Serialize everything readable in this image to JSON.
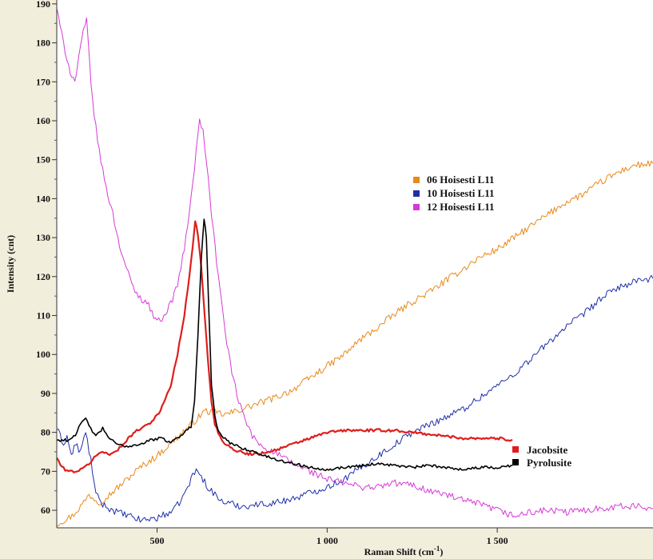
{
  "chart_data": {
    "type": "line",
    "xlabel": "Raman Shift (cm",
    "xlabel_sup": "-1",
    "xlabel_close": ")",
    "ylabel": "Intensity (cnt)",
    "xlim": [
      205,
      1958
    ],
    "ylim": [
      55.5,
      191
    ],
    "x_ticks": [
      {
        "value": 500,
        "label": "500"
      },
      {
        "value": 1000,
        "label": "1 000"
      },
      {
        "value": 1500,
        "label": "1 500"
      }
    ],
    "y_ticks": [
      {
        "value": 60,
        "label": "60"
      },
      {
        "value": 70,
        "label": "70"
      },
      {
        "value": 80,
        "label": "80"
      },
      {
        "value": 90,
        "label": "90"
      },
      {
        "value": 100,
        "label": "100"
      },
      {
        "value": 110,
        "label": "110"
      },
      {
        "value": 120,
        "label": "120"
      },
      {
        "value": 130,
        "label": "130"
      },
      {
        "value": 140,
        "label": "140"
      },
      {
        "value": 150,
        "label": "150"
      },
      {
        "value": 160,
        "label": "160"
      },
      {
        "value": 170,
        "label": "170"
      },
      {
        "value": 180,
        "label": "180"
      },
      {
        "value": 190,
        "label": "190"
      }
    ],
    "grid": false,
    "legend_position": "center-right",
    "legend": [
      {
        "name": "06 Hoisesti L11",
        "color": "#e8891c"
      },
      {
        "name": "10 Hoisesti L11",
        "color": "#1f2fa8"
      },
      {
        "name": "12 Hoisesti L11",
        "color": "#d63ad6"
      }
    ],
    "series": [
      {
        "name": "06 Hoisesti L11",
        "color": "#e8891c",
        "stroke_width": 1,
        "x": [
          205,
          250,
          280,
          300,
          330,
          360,
          400,
          450,
          500,
          550,
          600,
          640,
          680,
          700,
          750,
          800,
          850,
          900,
          950,
          1000,
          1050,
          1100,
          1150,
          1200,
          1250,
          1300,
          1350,
          1400,
          1450,
          1500,
          1550,
          1600,
          1650,
          1700,
          1750,
          1800,
          1850,
          1900,
          1958
        ],
        "y": [
          56.5,
          58.5,
          61.5,
          64,
          62,
          64,
          67,
          71,
          74,
          78,
          82,
          85.5,
          85,
          84.5,
          86,
          87.5,
          89,
          91,
          94,
          97,
          100,
          104,
          107,
          110.5,
          113.5,
          116,
          119,
          122,
          125,
          127,
          130,
          133,
          136,
          139,
          141,
          144,
          146.5,
          148.5,
          149
        ]
      },
      {
        "name": "10 Hoisesti L11",
        "color": "#1f2fa8",
        "stroke_width": 1,
        "x": [
          205,
          215,
          225,
          235,
          248,
          260,
          275,
          290,
          305,
          320,
          340,
          370,
          400,
          450,
          500,
          550,
          580,
          600,
          615,
          630,
          650,
          680,
          700,
          750,
          800,
          850,
          900,
          950,
          1000,
          1050,
          1100,
          1150,
          1200,
          1250,
          1300,
          1350,
          1400,
          1450,
          1500,
          1550,
          1600,
          1650,
          1700,
          1750,
          1800,
          1850,
          1900,
          1958
        ],
        "y": [
          81,
          79,
          77,
          79,
          74,
          77,
          75,
          80,
          73,
          64,
          61.5,
          60,
          59,
          57.5,
          58,
          60,
          64,
          68,
          70.5,
          68.5,
          66,
          63,
          62,
          61,
          61.5,
          62,
          63,
          64.5,
          66,
          68,
          71,
          74,
          77,
          80,
          82,
          84,
          86,
          89,
          92,
          95,
          99,
          103,
          107,
          110,
          114,
          117,
          118.5,
          119.5
        ]
      },
      {
        "name": "12 Hoisesti L11",
        "color": "#d63ad6",
        "stroke_width": 1,
        "x": [
          205,
          215,
          230,
          245,
          258,
          270,
          283,
          293,
          310,
          330,
          350,
          370,
          390,
          410,
          430,
          450,
          470,
          490,
          505,
          520,
          540,
          560,
          580,
          600,
          615,
          625,
          635,
          645,
          660,
          680,
          700,
          720,
          740,
          760,
          780,
          800,
          850,
          900,
          950,
          1000,
          1050,
          1100,
          1150,
          1200,
          1250,
          1300,
          1350,
          1400,
          1450,
          1500,
          1550,
          1600,
          1650,
          1700,
          1750,
          1800,
          1850,
          1900,
          1958
        ],
        "y": [
          189,
          184,
          178,
          172.5,
          170,
          176,
          183,
          185.5,
          165,
          152,
          143,
          136,
          128,
          122,
          117,
          114.5,
          113.5,
          110,
          108.5,
          110,
          113,
          118,
          127,
          140,
          152,
          161,
          157,
          150,
          136,
          120,
          106,
          95,
          88,
          83,
          79,
          77,
          74.5,
          72,
          70,
          68,
          67,
          66,
          66,
          67,
          66.5,
          65,
          64,
          62.5,
          61.5,
          60,
          58.5,
          59.5,
          60,
          59.5,
          60,
          60.5,
          61,
          61,
          60.5
        ]
      },
      {
        "name": "Jacobsite",
        "color": "#e01d1d",
        "stroke_width": 2.2,
        "x": [
          205,
          220,
          240,
          260,
          280,
          300,
          320,
          340,
          360,
          380,
          400,
          420,
          450,
          480,
          510,
          540,
          560,
          580,
          595,
          605,
          612,
          620,
          630,
          640,
          650,
          660,
          670,
          690,
          710,
          730,
          760,
          800,
          850,
          900,
          950,
          1000,
          1050,
          1100,
          1150,
          1200,
          1250,
          1300,
          1350,
          1400,
          1450,
          1500,
          1545
        ],
        "y": [
          73.5,
          71,
          70,
          70,
          70.5,
          72,
          74,
          75,
          74.5,
          75,
          77,
          79,
          81,
          82.5,
          85.5,
          92,
          100,
          110,
          120,
          128,
          134.5,
          131,
          122,
          110,
          98,
          88,
          82,
          78,
          76.5,
          75.5,
          74.5,
          74.5,
          75.5,
          77,
          78.5,
          80,
          80.5,
          80.5,
          80.5,
          80.5,
          80,
          79.5,
          79,
          78.5,
          78.5,
          78.5,
          78
        ]
      },
      {
        "name": "Pyrolusite",
        "color": "#000000",
        "stroke_width": 1.6,
        "x": [
          205,
          220,
          240,
          260,
          275,
          290,
          305,
          320,
          340,
          360,
          380,
          400,
          420,
          450,
          480,
          510,
          540,
          560,
          580,
          600,
          610,
          620,
          630,
          638,
          645,
          652,
          660,
          670,
          680,
          690,
          710,
          750,
          800,
          850,
          900,
          950,
          1000,
          1050,
          1100,
          1150,
          1200,
          1250,
          1300,
          1350,
          1400,
          1450,
          1500,
          1545
        ],
        "y": [
          78,
          78,
          78,
          79.5,
          82,
          83.5,
          81,
          79,
          81,
          78.5,
          77,
          76.5,
          76.5,
          77,
          78,
          78.5,
          77.5,
          78.5,
          80,
          81.5,
          88,
          105,
          125,
          135,
          130,
          112,
          92,
          84,
          80.5,
          79,
          77.5,
          76,
          74.5,
          73,
          72,
          71,
          70.5,
          71,
          71.5,
          72,
          71.5,
          71,
          71.5,
          71,
          70.5,
          71,
          71,
          71.5
        ]
      }
    ],
    "end_labels": [
      {
        "name": "Jacobsite",
        "color": "#e01d1d"
      },
      {
        "name": "Pyrolusite",
        "color": "#000000"
      }
    ]
  }
}
